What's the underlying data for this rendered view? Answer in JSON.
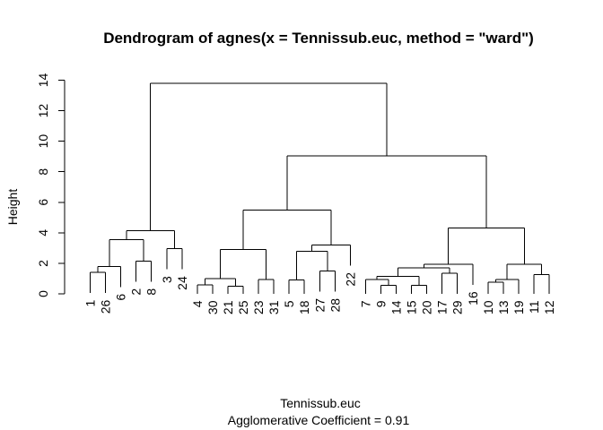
{
  "chart_data": {
    "type": "dendrogram",
    "title": "Dendrogram of  agnes(x = Tennissub.euc, method = \"ward\")",
    "xlabel": "Tennissub.euc",
    "ylabel": "Height",
    "subtitle": "Agglomerative Coefficient =  0.91",
    "ylim": [
      0,
      14
    ],
    "y_ticks": [
      "0",
      "2",
      "4",
      "6",
      "8",
      "10",
      "12",
      "14"
    ],
    "leaf_order": [
      "1",
      "26",
      "6",
      "2",
      "8",
      "3",
      "24",
      "4",
      "30",
      "21",
      "25",
      "23",
      "31",
      "5",
      "18",
      "27",
      "28",
      "22",
      "7",
      "9",
      "14",
      "15",
      "20",
      "17",
      "29",
      "16",
      "10",
      "13",
      "19",
      "11",
      "12"
    ],
    "merges": [
      {
        "left": "L:1",
        "right": "L:26",
        "height": 1.4
      },
      {
        "left": "M:0",
        "right": "L:6",
        "height": 1.8
      },
      {
        "left": "L:2",
        "right": "L:8",
        "height": 2.15
      },
      {
        "left": "M:1",
        "right": "M:2",
        "height": 3.55
      },
      {
        "left": "L:3",
        "right": "L:24",
        "height": 2.95
      },
      {
        "left": "M:3",
        "right": "M:4",
        "height": 4.15
      },
      {
        "left": "L:4",
        "right": "L:30",
        "height": 0.6
      },
      {
        "left": "L:21",
        "right": "L:25",
        "height": 0.5
      },
      {
        "left": "M:6",
        "right": "M:7",
        "height": 1.0
      },
      {
        "left": "L:23",
        "right": "L:31",
        "height": 0.95
      },
      {
        "left": "M:8",
        "right": "M:9",
        "height": 2.9
      },
      {
        "left": "L:5",
        "right": "L:18",
        "height": 0.9
      },
      {
        "left": "L:27",
        "right": "L:28",
        "height": 1.5
      },
      {
        "left": "M:11",
        "right": "M:12",
        "height": 2.8
      },
      {
        "left": "M:13",
        "right": "L:22",
        "height": 3.2
      },
      {
        "left": "M:10",
        "right": "M:14",
        "height": 5.5
      },
      {
        "left": "L:9",
        "right": "L:14",
        "height": 0.55
      },
      {
        "left": "L:7",
        "right": "M:16",
        "height": 0.95
      },
      {
        "left": "L:15",
        "right": "L:20",
        "height": 0.55
      },
      {
        "left": "M:17",
        "right": "M:18",
        "height": 1.15
      },
      {
        "left": "L:17",
        "right": "L:29",
        "height": 1.35
      },
      {
        "left": "M:19",
        "right": "M:20",
        "height": 1.7
      },
      {
        "left": "M:21",
        "right": "L:16",
        "height": 1.95
      },
      {
        "left": "L:10",
        "right": "L:13",
        "height": 0.75
      },
      {
        "left": "M:23",
        "right": "L:19",
        "height": 0.95
      },
      {
        "left": "L:11",
        "right": "L:12",
        "height": 1.25
      },
      {
        "left": "M:24",
        "right": "M:25",
        "height": 1.95
      },
      {
        "left": "M:22",
        "right": "M:26",
        "height": 4.3
      },
      {
        "left": "M:15",
        "right": "M:27",
        "height": 9.05
      },
      {
        "left": "M:5",
        "right": "M:28",
        "height": 13.8
      }
    ]
  }
}
